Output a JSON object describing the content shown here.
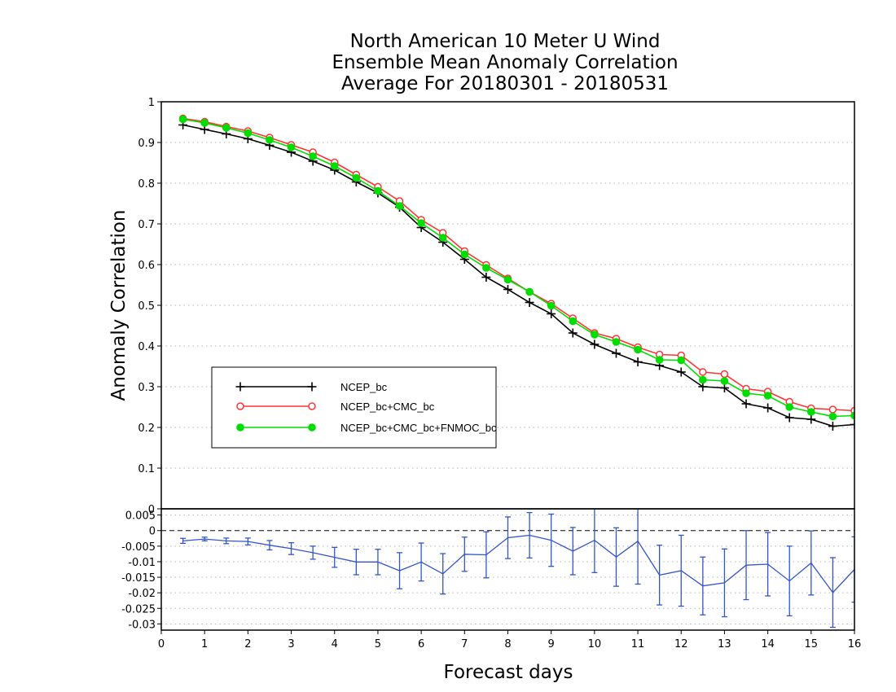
{
  "chart_data": [
    {
      "type": "line",
      "title": [
        "North American 10 Meter U Wind",
        "Ensemble Mean Anomaly Correlation",
        "Average For 20180301 - 20180531"
      ],
      "ylabel": "Anomaly Correlation",
      "ylim": [
        0,
        1
      ],
      "yticks": [
        "0",
        "0.1",
        "0.2",
        "0.3",
        "0.4",
        "0.5",
        "0.6",
        "0.7",
        "0.8",
        "0.9",
        "1"
      ],
      "grid": true,
      "legend_position": "lower-left",
      "x": [
        0.5,
        1,
        1.5,
        2,
        2.5,
        3,
        3.5,
        4,
        4.5,
        5,
        5.5,
        6,
        6.5,
        7,
        7.5,
        8,
        8.5,
        9,
        9.5,
        10,
        10.5,
        11,
        11.5,
        12,
        12.5,
        13,
        13.5,
        14,
        14.5,
        15,
        15.5,
        16
      ],
      "series": [
        {
          "name": "NCEP_bc",
          "color": "#000000",
          "marker": "plus",
          "values": [
            0.943,
            0.932,
            0.921,
            0.909,
            0.893,
            0.876,
            0.854,
            0.832,
            0.803,
            0.776,
            0.741,
            0.691,
            0.655,
            0.613,
            0.569,
            0.539,
            0.507,
            0.479,
            0.432,
            0.404,
            0.382,
            0.361,
            0.352,
            0.336,
            0.3,
            0.297,
            0.258,
            0.248,
            0.224,
            0.22,
            0.203,
            0.207
          ]
        },
        {
          "name": "NCEP_bc+CMC_bc",
          "color": "#ff3333",
          "marker": "open-circle",
          "values": [
            0.959,
            0.951,
            0.939,
            0.928,
            0.912,
            0.894,
            0.876,
            0.851,
            0.821,
            0.791,
            0.756,
            0.71,
            0.678,
            0.633,
            0.599,
            0.566,
            0.533,
            0.504,
            0.468,
            0.432,
            0.418,
            0.397,
            0.379,
            0.377,
            0.336,
            0.331,
            0.295,
            0.288,
            0.263,
            0.247,
            0.244,
            0.241
          ]
        },
        {
          "name": "NCEP_bc+CMC_bc+FNMOC_bc",
          "color": "#00dd00",
          "marker": "filled-circle",
          "values": [
            0.957,
            0.948,
            0.936,
            0.923,
            0.906,
            0.888,
            0.866,
            0.842,
            0.813,
            0.781,
            0.744,
            0.702,
            0.666,
            0.625,
            0.592,
            0.563,
            0.533,
            0.499,
            0.461,
            0.428,
            0.41,
            0.391,
            0.366,
            0.365,
            0.317,
            0.314,
            0.284,
            0.278,
            0.25,
            0.238,
            0.227,
            0.229
          ]
        }
      ]
    },
    {
      "type": "line",
      "xlabel": "Forecast days",
      "xlim": [
        0,
        16
      ],
      "xticks": [
        "0",
        "1",
        "2",
        "3",
        "4",
        "5",
        "6",
        "7",
        "8",
        "9",
        "10",
        "11",
        "12",
        "13",
        "14",
        "15",
        "16"
      ],
      "ylim": [
        -0.032,
        0.007
      ],
      "yticks": [
        "0.005",
        "0",
        "-0.005",
        "-0.01",
        "-0.015",
        "-0.02",
        "-0.025",
        "-0.03"
      ],
      "grid": true,
      "reference_line": 0,
      "series": [
        {
          "name": "",
          "color": "#3355cc",
          "marker": "error-bar",
          "x": [
            0.5,
            1,
            1.5,
            2,
            2.5,
            3,
            3.5,
            4,
            4.5,
            5,
            5.5,
            6,
            6.5,
            7,
            7.5,
            8,
            8.5,
            9,
            9.5,
            10,
            10.5,
            11,
            11.5,
            12,
            12.5,
            13,
            13.5,
            14,
            14.5,
            15,
            15.5,
            16
          ],
          "values": [
            -0.0033,
            -0.0027,
            -0.0033,
            -0.0035,
            -0.0047,
            -0.0058,
            -0.0071,
            -0.0086,
            -0.0101,
            -0.0101,
            -0.0129,
            -0.0101,
            -0.0139,
            -0.0076,
            -0.0078,
            -0.0023,
            -0.0015,
            -0.0031,
            -0.0066,
            -0.0031,
            -0.0085,
            -0.0034,
            -0.0143,
            -0.0129,
            -0.0178,
            -0.0168,
            -0.0111,
            -0.0108,
            -0.0162,
            -0.0104,
            -0.0199,
            -0.0125
          ],
          "error": [
            0.0008,
            0.0006,
            0.0009,
            0.0011,
            0.0015,
            0.0019,
            0.0021,
            0.0032,
            0.0041,
            0.0041,
            0.0058,
            0.0061,
            0.0065,
            0.0055,
            0.0074,
            0.0067,
            0.0073,
            0.0084,
            0.0076,
            0.0104,
            0.0094,
            0.0138,
            0.0096,
            0.0114,
            0.0093,
            0.0109,
            0.0111,
            0.0102,
            0.0112,
            0.0103,
            0.0112,
            0.0105
          ]
        }
      ]
    }
  ]
}
